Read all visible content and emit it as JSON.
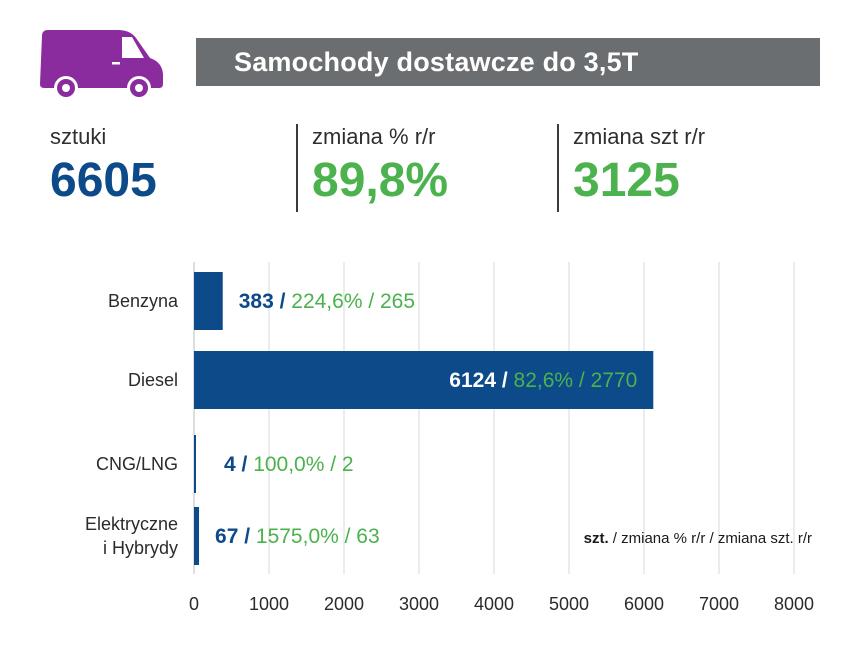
{
  "header": {
    "title": "Samochody dostawcze do 3,5T",
    "icon": "van-icon",
    "icon_color": "#8a2c9e",
    "bar_color": "#6b6e70"
  },
  "kpis": [
    {
      "label": "sztuki",
      "value": "6605"
    },
    {
      "label": "zmiana % r/r",
      "value": "89,8%"
    },
    {
      "label": "zmiana szt r/r",
      "value": "3125"
    }
  ],
  "colors": {
    "primary": "#0c4a8a",
    "green": "#4bb24d",
    "grid": "#d9d9d9"
  },
  "chart_data": {
    "type": "bar",
    "orientation": "horizontal",
    "categories": [
      "Benzyna",
      "Diesel",
      "CNG/LNG",
      "Elektryczne i Hybrydy"
    ],
    "category_lines": [
      [
        "Benzyna"
      ],
      [
        "Diesel"
      ],
      [
        "CNG/LNG"
      ],
      [
        "Elektryczne",
        "i Hybrydy"
      ]
    ],
    "values": [
      383,
      6124,
      4,
      67
    ],
    "value_labels": [
      "383 /",
      "6124 /",
      "4 /",
      "67 /"
    ],
    "change_labels": [
      "224,6% / 265",
      "82,6% / 2770",
      "100,0% / 2",
      "1575,0% / 63"
    ],
    "xlim": [
      0,
      8000
    ],
    "xticks": [
      0,
      1000,
      2000,
      3000,
      4000,
      5000,
      6000,
      7000,
      8000
    ],
    "grid": true,
    "legend": {
      "bold": "szt.",
      "rest": " / zmiana % r/r / zmiana szt. r/r"
    }
  }
}
